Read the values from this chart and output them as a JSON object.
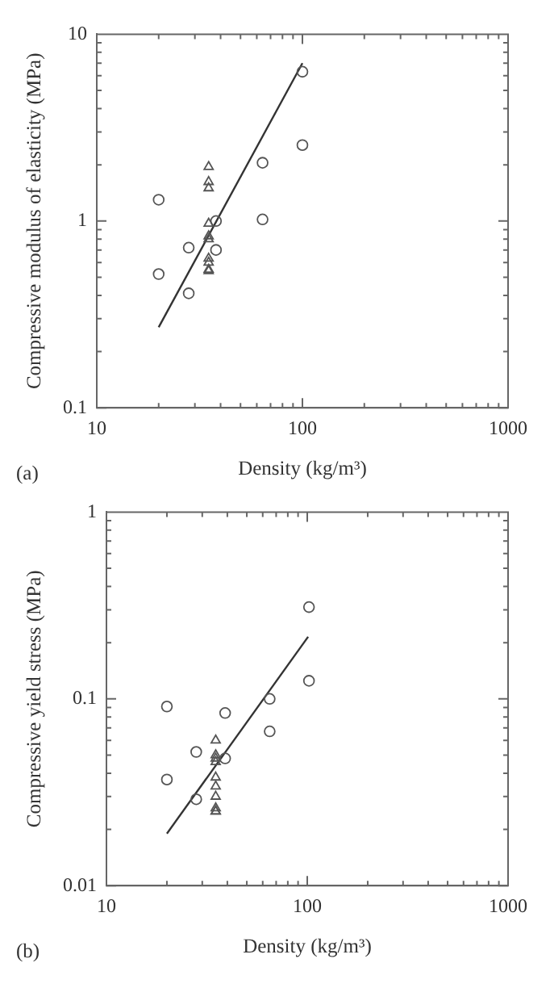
{
  "chart_data": [
    {
      "type": "scatter",
      "xlabel": "Density (kg/m³)",
      "ylabel": "Compressive modulus of elasticity (MPa)",
      "log": "xy",
      "grid": false,
      "legend": false,
      "xlim": [
        10,
        1000
      ],
      "xticks": [
        10,
        100,
        1000
      ],
      "ylim": [
        0.1,
        10
      ],
      "yticks": [
        0.1,
        1,
        10
      ],
      "annotations": [
        "(a)"
      ],
      "series": [
        {
          "type": "scatter",
          "marker": "circle",
          "color": "#555555",
          "x": [
            20,
            20,
            28,
            28,
            38,
            38,
            64,
            64,
            100,
            100
          ],
          "values": [
            1.3,
            0.52,
            0.72,
            0.41,
            1.0,
            0.7,
            2.05,
            1.02,
            6.3,
            2.55
          ]
        },
        {
          "type": "scatter",
          "marker": "triangle",
          "color": "#555555",
          "x": [
            35,
            35,
            35,
            35,
            35,
            35,
            35,
            35,
            35,
            35
          ],
          "values": [
            1.95,
            1.62,
            1.5,
            0.97,
            0.83,
            0.8,
            0.63,
            0.6,
            0.55,
            0.54
          ]
        },
        {
          "type": "line",
          "marker": "none",
          "color": "#333333",
          "x": [
            20,
            100
          ],
          "values": [
            0.27,
            7.0
          ]
        }
      ]
    },
    {
      "type": "scatter",
      "xlabel": "Density (kg/m³)",
      "ylabel": "Compressive yield stress (MPa)",
      "log": "xy",
      "grid": false,
      "legend": false,
      "xlim": [
        10,
        1000
      ],
      "xticks": [
        10,
        100,
        1000
      ],
      "ylim": [
        0.01,
        1
      ],
      "yticks": [
        0.01,
        0.1,
        1
      ],
      "annotations": [
        "(b)"
      ],
      "series": [
        {
          "type": "scatter",
          "marker": "circle",
          "color": "#555555",
          "x": [
            20,
            20,
            28,
            28,
            39,
            39,
            65,
            65,
            102,
            102
          ],
          "values": [
            0.091,
            0.037,
            0.052,
            0.029,
            0.084,
            0.048,
            0.1,
            0.067,
            0.31,
            0.125
          ]
        },
        {
          "type": "scatter",
          "marker": "triangle",
          "color": "#555555",
          "x": [
            35,
            35,
            35,
            35,
            35,
            35,
            35,
            35,
            35,
            35
          ],
          "values": [
            0.06,
            0.05,
            0.048,
            0.046,
            0.038,
            0.034,
            0.03,
            0.026,
            0.025,
            0.025
          ]
        },
        {
          "type": "line",
          "marker": "none",
          "color": "#333333",
          "x": [
            20,
            101
          ],
          "values": [
            0.019,
            0.215
          ]
        }
      ]
    }
  ]
}
